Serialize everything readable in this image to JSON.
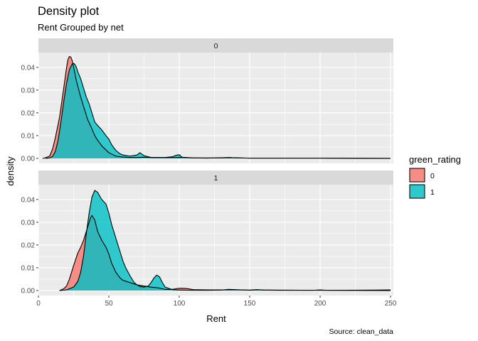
{
  "chart_data": {
    "type": "area",
    "title": "Density plot",
    "subtitle": "Rent Grouped by net",
    "caption": "Source: clean_data",
    "xlabel": "Rent",
    "ylabel": "density",
    "xlim": [
      0,
      252
    ],
    "ylim": [
      -0.0022,
      0.0465
    ],
    "x_ticks": [
      0,
      50,
      100,
      150,
      200,
      250
    ],
    "y_ticks": [
      0.0,
      0.01,
      0.02,
      0.03,
      0.04
    ],
    "y_tick_labels": [
      "0.00",
      "0.01",
      "0.02",
      "0.03",
      "0.04"
    ],
    "facet_var": "net",
    "legend": {
      "title": "green_rating",
      "position": "right",
      "entries": [
        {
          "label": "0",
          "color": "#F8766D"
        },
        {
          "label": "1",
          "color": "#00BFC4"
        }
      ]
    },
    "panels": [
      {
        "strip": "0",
        "series": [
          {
            "name": "0",
            "color": "#F8766D",
            "x": [
              3,
              5,
              8,
              10,
              12,
              15,
              18,
              20,
              21,
              22,
              23,
              24,
              25,
              27,
              30,
              33,
              35,
              38,
              40,
              42,
              45,
              50,
              55,
              60,
              65,
              70,
              75,
              80,
              90,
              100,
              110,
              120,
              130,
              140,
              150,
              200,
              250
            ],
            "y": [
              0.0,
              0.0003,
              0.001,
              0.004,
              0.009,
              0.018,
              0.031,
              0.04,
              0.0435,
              0.0448,
              0.0445,
              0.043,
              0.04,
              0.034,
              0.027,
              0.021,
              0.017,
              0.013,
              0.01,
              0.008,
              0.0055,
              0.0025,
              0.001,
              0.0006,
              0.0004,
              0.0004,
              0.0005,
              0.0004,
              0.0003,
              0.0004,
              0.0002,
              0.0002,
              0.0002,
              0.0003,
              0.0001,
              0.0001,
              0.0
            ]
          },
          {
            "name": "1",
            "color": "#00BFC4",
            "x": [
              5,
              8,
              10,
              12,
              14,
              16,
              18,
              20,
              22,
              24,
              25,
              26,
              27,
              28,
              30,
              32,
              34,
              36,
              38,
              40,
              42,
              45,
              48,
              50,
              52,
              55,
              58,
              60,
              65,
              70,
              72,
              75,
              80,
              90,
              95,
              98,
              100,
              102,
              110,
              120,
              130,
              136,
              140,
              150,
              200,
              250
            ],
            "y": [
              0.0,
              0.0002,
              0.0008,
              0.003,
              0.008,
              0.016,
              0.025,
              0.033,
              0.039,
              0.0415,
              0.0418,
              0.0412,
              0.04,
              0.038,
              0.035,
              0.031,
              0.027,
              0.024,
              0.02,
              0.016,
              0.0145,
              0.0125,
              0.01,
              0.0085,
              0.006,
              0.0035,
              0.002,
              0.0015,
              0.001,
              0.0015,
              0.0025,
              0.0012,
              0.0004,
              0.0004,
              0.0007,
              0.0014,
              0.0016,
              0.0005,
              0.0002,
              0.0001,
              0.0003,
              0.0004,
              0.0002,
              0.0001,
              0.0001,
              0.0
            ]
          }
        ]
      },
      {
        "strip": "1",
        "series": [
          {
            "name": "0",
            "color": "#F8766D",
            "x": [
              15,
              18,
              20,
              22,
              25,
              28,
              30,
              32,
              34,
              36,
              37,
              38,
              40,
              42,
              45,
              48,
              50,
              52,
              55,
              58,
              60,
              65,
              70,
              75,
              80,
              85,
              90,
              95,
              100,
              105,
              110,
              120,
              135,
              140,
              150,
              155,
              160,
              170,
              195,
              200,
              205,
              240,
              250
            ],
            "y": [
              0.0,
              0.0008,
              0.002,
              0.005,
              0.011,
              0.0165,
              0.019,
              0.022,
              0.026,
              0.03,
              0.032,
              0.033,
              0.031,
              0.026,
              0.022,
              0.019,
              0.016,
              0.012,
              0.008,
              0.0055,
              0.0045,
              0.0035,
              0.0025,
              0.002,
              0.0015,
              0.0012,
              0.0005,
              0.0005,
              0.001,
              0.0009,
              0.0004,
              0.0003,
              0.0003,
              0.0003,
              0.0002,
              0.0004,
              0.0002,
              0.0001,
              0.0001,
              0.0003,
              0.0001,
              0.0002,
              0.0003
            ]
          },
          {
            "name": "1",
            "color": "#00BFC4",
            "x": [
              15,
              20,
              25,
              28,
              30,
              32,
              34,
              36,
              38,
              40,
              42,
              44,
              45,
              48,
              50,
              52,
              55,
              58,
              60,
              62,
              65,
              68,
              70,
              72,
              75,
              78,
              80,
              82,
              84,
              86,
              88,
              90,
              95,
              100,
              110,
              120,
              130,
              135,
              140,
              150,
              155,
              160,
              200,
              250
            ],
            "y": [
              0.0,
              0.0003,
              0.0015,
              0.004,
              0.008,
              0.015,
              0.025,
              0.034,
              0.041,
              0.044,
              0.0432,
              0.041,
              0.04,
              0.038,
              0.034,
              0.029,
              0.023,
              0.017,
              0.013,
              0.01,
              0.0065,
              0.0035,
              0.0025,
              0.0018,
              0.0015,
              0.002,
              0.0035,
              0.0055,
              0.0068,
              0.006,
              0.0035,
              0.0015,
              0.0004,
              0.0002,
              0.0001,
              0.0001,
              0.0002,
              0.0005,
              0.0004,
              0.0001,
              0.0003,
              0.0002,
              0.0001,
              0.0
            ]
          }
        ]
      }
    ]
  }
}
